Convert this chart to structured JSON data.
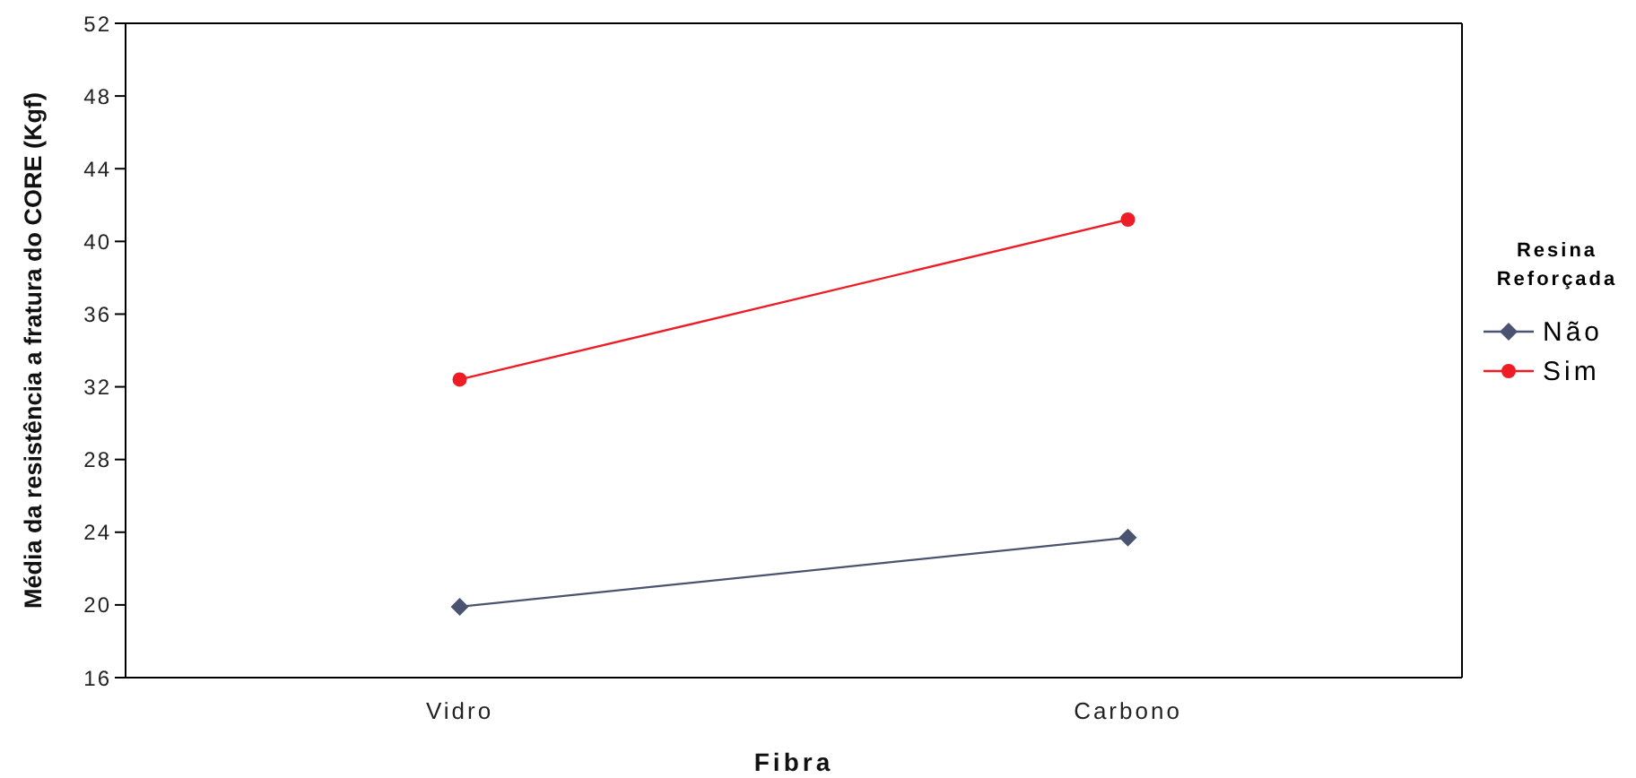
{
  "chart_data": {
    "type": "line",
    "xlabel": "Fibra",
    "ylabel": "Média da resistência a fratura do CORE (Kgf)",
    "legend_title": "Resina Reforçada",
    "categories": [
      "Vidro",
      "Carbono"
    ],
    "series": [
      {
        "name": "Não",
        "color": "#4a5470",
        "values": [
          19.9,
          23.7
        ],
        "marker": "diamond"
      },
      {
        "name": "Sim",
        "color": "#ee1c25",
        "values": [
          32.4,
          41.2
        ],
        "marker": "circle"
      }
    ],
    "ylim": [
      16,
      52
    ],
    "yticks": [
      16,
      20,
      24,
      28,
      32,
      36,
      40,
      44,
      48,
      52
    ],
    "grid": false,
    "legend": "right",
    "line_style": "solid"
  }
}
